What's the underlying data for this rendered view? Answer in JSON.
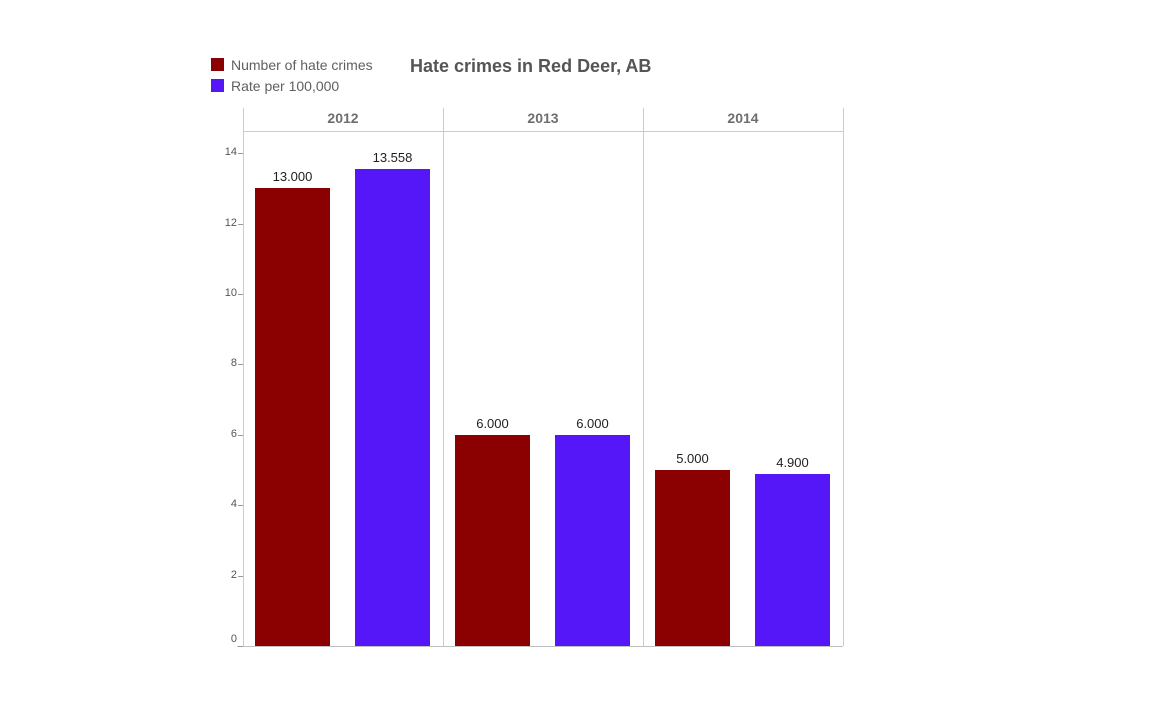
{
  "title": "Hate crimes in Red Deer, AB",
  "chart_data": {
    "type": "bar",
    "title": "Hate crimes in Red Deer, AB",
    "categories": [
      "2012",
      "2013",
      "2014"
    ],
    "series": [
      {
        "name": "Number of hate crimes",
        "color": "#8b0101",
        "values": [
          13.0,
          6.0,
          5.0
        ],
        "labels": [
          "13.000",
          "6.000",
          "5.000"
        ]
      },
      {
        "name": "Rate per 100,000",
        "color": "#5617f8",
        "values": [
          13.558,
          6.0,
          4.9
        ],
        "labels": [
          "13.558",
          "6.000",
          "4.900"
        ]
      }
    ],
    "xlabel": "",
    "ylabel": "",
    "ylim": [
      0,
      14.6
    ],
    "yticks": [
      0,
      2,
      4,
      6,
      8,
      10,
      12,
      14
    ],
    "legend_position": "top-left",
    "grid": false,
    "panel_headers_on_top": true
  }
}
